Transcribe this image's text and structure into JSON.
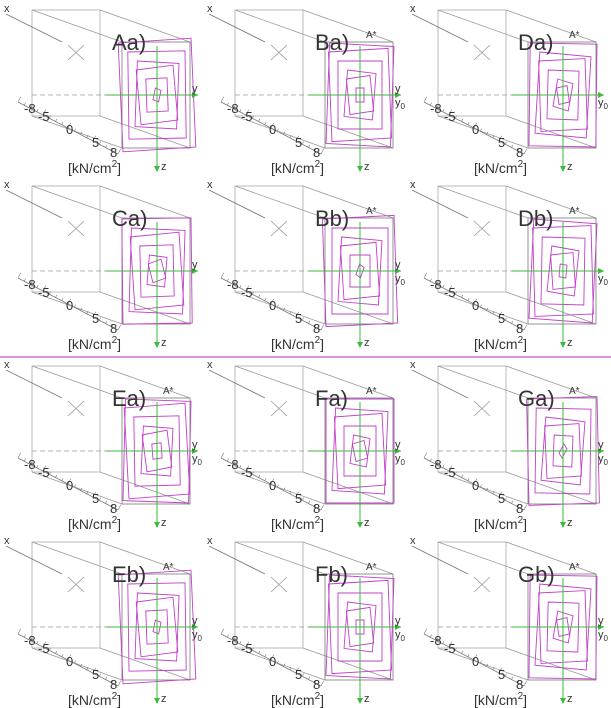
{
  "panels": [
    {
      "label": "Aa)",
      "x": "x",
      "y": "y",
      "z": "z"
    },
    {
      "label": "Ba)",
      "x": "x",
      "astar": "A*",
      "y": "y",
      "y0": {
        "base": "y",
        "sub": "0"
      },
      "z": "z"
    },
    {
      "label": "Da)",
      "x": "x",
      "astar": "A*",
      "y0": {
        "base": "y",
        "sub": "0"
      },
      "z": "z"
    },
    {
      "label": "Ca)",
      "x": "x",
      "y": "y",
      "z": "z"
    },
    {
      "label": "Bb)",
      "x": "x",
      "astar": "A*",
      "y": "y",
      "y0": {
        "base": "y",
        "sub": "0"
      },
      "z": "z"
    },
    {
      "label": "Db)",
      "x": "x",
      "astar": "A*",
      "y0": {
        "base": "y",
        "sub": "0"
      },
      "z": "z"
    },
    {
      "label": "Ea)",
      "x": "x",
      "astar": "A*",
      "y": "y",
      "y0": {
        "base": "y",
        "sub": "0"
      },
      "z": "z"
    },
    {
      "label": "Fa)",
      "x": "x",
      "astar": "A*",
      "y": "y",
      "y0": {
        "base": "y",
        "sub": "0"
      },
      "z": "z"
    },
    {
      "label": "Ga)",
      "x": "x",
      "astar": "A*",
      "y": "y",
      "y0": {
        "base": "y",
        "sub": "0"
      },
      "z": "z"
    },
    {
      "label": "Eb)",
      "x": "x",
      "astar": "A*",
      "y": "y",
      "y0": {
        "base": "y",
        "sub": "0"
      },
      "z": "z"
    },
    {
      "label": "Fb)",
      "x": "x",
      "astar": "A*",
      "y": "y",
      "y0": {
        "base": "y",
        "sub": "0"
      },
      "z": "z"
    },
    {
      "label": "Gb)",
      "x": "x",
      "astar": "A*",
      "y": "y",
      "y0": {
        "base": "y",
        "sub": "0"
      },
      "z": "z"
    }
  ],
  "scale": [
    "-8",
    "-5",
    "0",
    "5",
    "8"
  ],
  "unit": {
    "text": "[kN/cm",
    "exp": "2",
    "close": "]"
  }
}
